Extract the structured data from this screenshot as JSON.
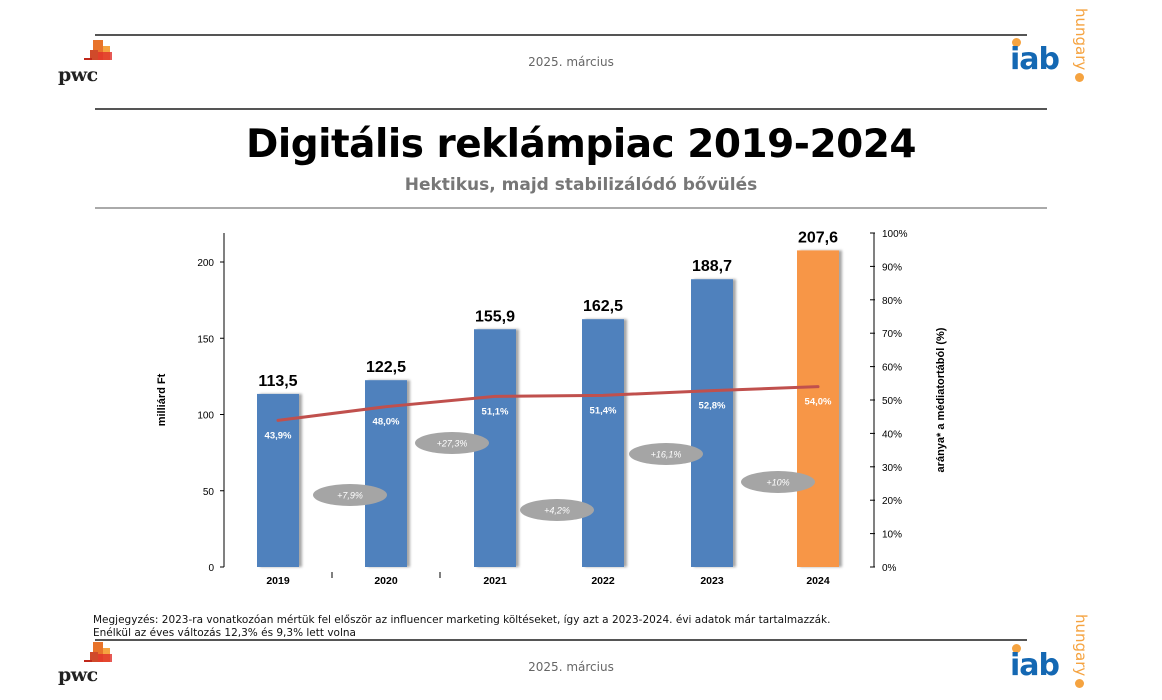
{
  "header": {
    "date": "2025. március",
    "left_logo": "pwc",
    "right_logo": {
      "main": "iab",
      "side": "hungary"
    }
  },
  "title": "Digitális reklámpiac 2019-2024",
  "subtitle": "Hektikus, majd stabilizálódó bővülés",
  "note": {
    "line1": "Megjegyzés: 2023-ra vonatkozóan mértük fel először az influencer marketing költéseket, így azt a 2023-2024. évi adatok már tartalmazzák.",
    "line2": "Enélkül az éves változás 12,3% és 9,3% lett volna"
  },
  "footer": {
    "date": "2025. március",
    "left_logo": "pwc",
    "right_logo": {
      "main": "iab",
      "side": "hungary"
    }
  },
  "colors": {
    "bar": "#4f81bd",
    "bar_highlight": "#f79646",
    "line": "#c0504d",
    "growth_bubble": "#a5a5a5",
    "pwc_orange": "#e8732a",
    "iab_blue": "#1468b3",
    "iab_orange": "#f5a340"
  },
  "chart_data": {
    "type": "bar",
    "categories": [
      "2019",
      "2020",
      "2021",
      "2022",
      "2023",
      "2024"
    ],
    "series": [
      {
        "name": "milliárd Ft",
        "axis": "left",
        "type": "bar",
        "values": [
          113.5,
          122.5,
          155.9,
          162.5,
          188.7,
          207.6
        ],
        "labels": [
          "113,5",
          "122,5",
          "155,9",
          "162,5",
          "188,7",
          "207,6"
        ],
        "highlight_index": 5
      },
      {
        "name": "aránya* a médiatortából (%)",
        "axis": "right",
        "type": "line",
        "values": [
          43.9,
          48.0,
          51.1,
          51.4,
          52.8,
          54.0
        ],
        "labels": [
          "43,9%",
          "48,0%",
          "51,1%",
          "51,4%",
          "52,8%",
          "54,0%"
        ]
      }
    ],
    "growth_labels": [
      "+7,9%",
      "+27,3%",
      "+4,2%",
      "+16,1%",
      "+10%"
    ],
    "growth_values": [
      7.9,
      27.3,
      4.2,
      16.1,
      10
    ],
    "ylabel": "milliárd Ft",
    "ylabel_right": "aránya* a médiatortából (%)",
    "ylim": [
      0,
      220
    ],
    "yticks": [
      0,
      50,
      100,
      150,
      200
    ],
    "ylim_right": [
      0,
      100
    ],
    "yticks_right": [
      "0%",
      "10%",
      "20%",
      "30%",
      "40%",
      "50%",
      "60%",
      "70%",
      "80%",
      "90%",
      "100%"
    ],
    "grid": false,
    "legend": "none"
  }
}
